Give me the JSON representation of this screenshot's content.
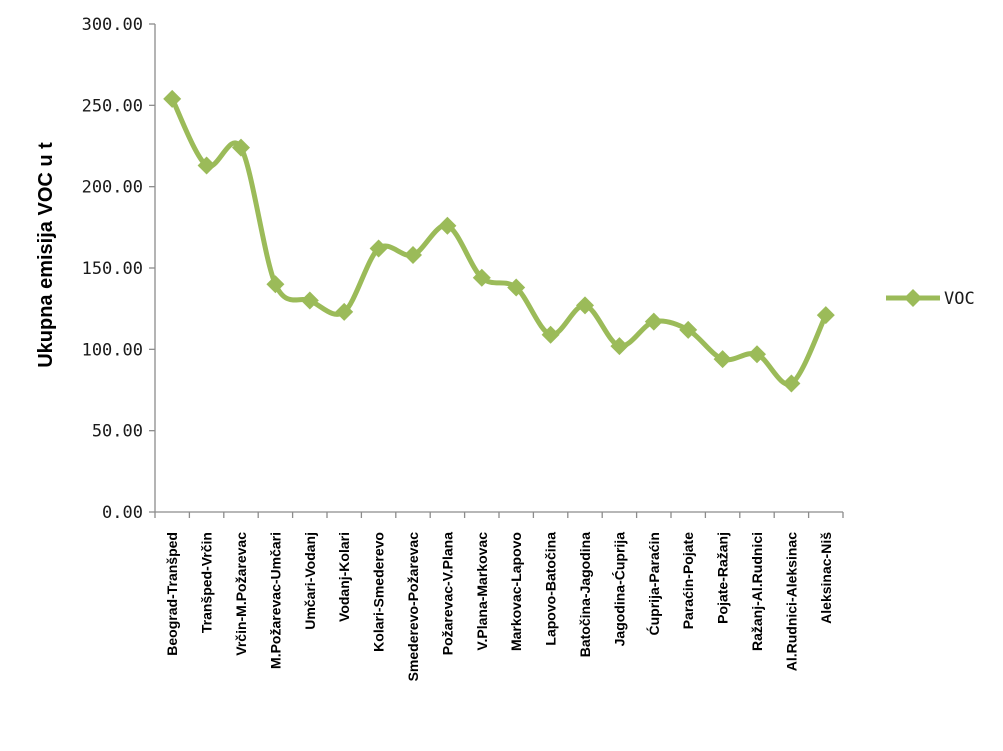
{
  "chart_data": {
    "type": "line",
    "title": "",
    "xlabel": "",
    "ylabel": "Ukupna emisija VOC u t",
    "ylim": [
      0,
      300
    ],
    "ytick_labels": [
      "0.00",
      "50.00",
      "100.00",
      "150.00",
      "200.00",
      "250.00",
      "300.00"
    ],
    "yticks": [
      0,
      50,
      100,
      150,
      200,
      250,
      300
    ],
    "grid": false,
    "legend_position": "right",
    "categories": [
      "Beograd-Tranšped",
      "Tranšped-Vrčin",
      "Vrčin-M.Požarevac",
      "M.Požarevac-Umčari",
      "Umčari-Vodanj",
      "Vodanj-Kolari",
      "Kolari-Smederevo",
      "Smederevo-Požarevac",
      "Požarevac-V.Plana",
      "V.Plana-Markovac",
      "Markovac-Lapovo",
      "Lapovo-Batočina",
      "Batočina-Jagodina",
      "Jagodina-Ćuprija",
      "Ćuprija-Paraćin",
      "Paraćin-Pojate",
      "Pojate-Ražanj",
      "Ražanj-Al.Rudnici",
      "Al.Rudnici-Aleksinac",
      "Aleksinac-Niš"
    ],
    "series": [
      {
        "name": "VOC",
        "color": "#9bbb59",
        "values": [
          254,
          213,
          224,
          140,
          130,
          123,
          162,
          158,
          176,
          144,
          138,
          109,
          127,
          102,
          117,
          112,
          94,
          97,
          79,
          121
        ]
      }
    ]
  }
}
